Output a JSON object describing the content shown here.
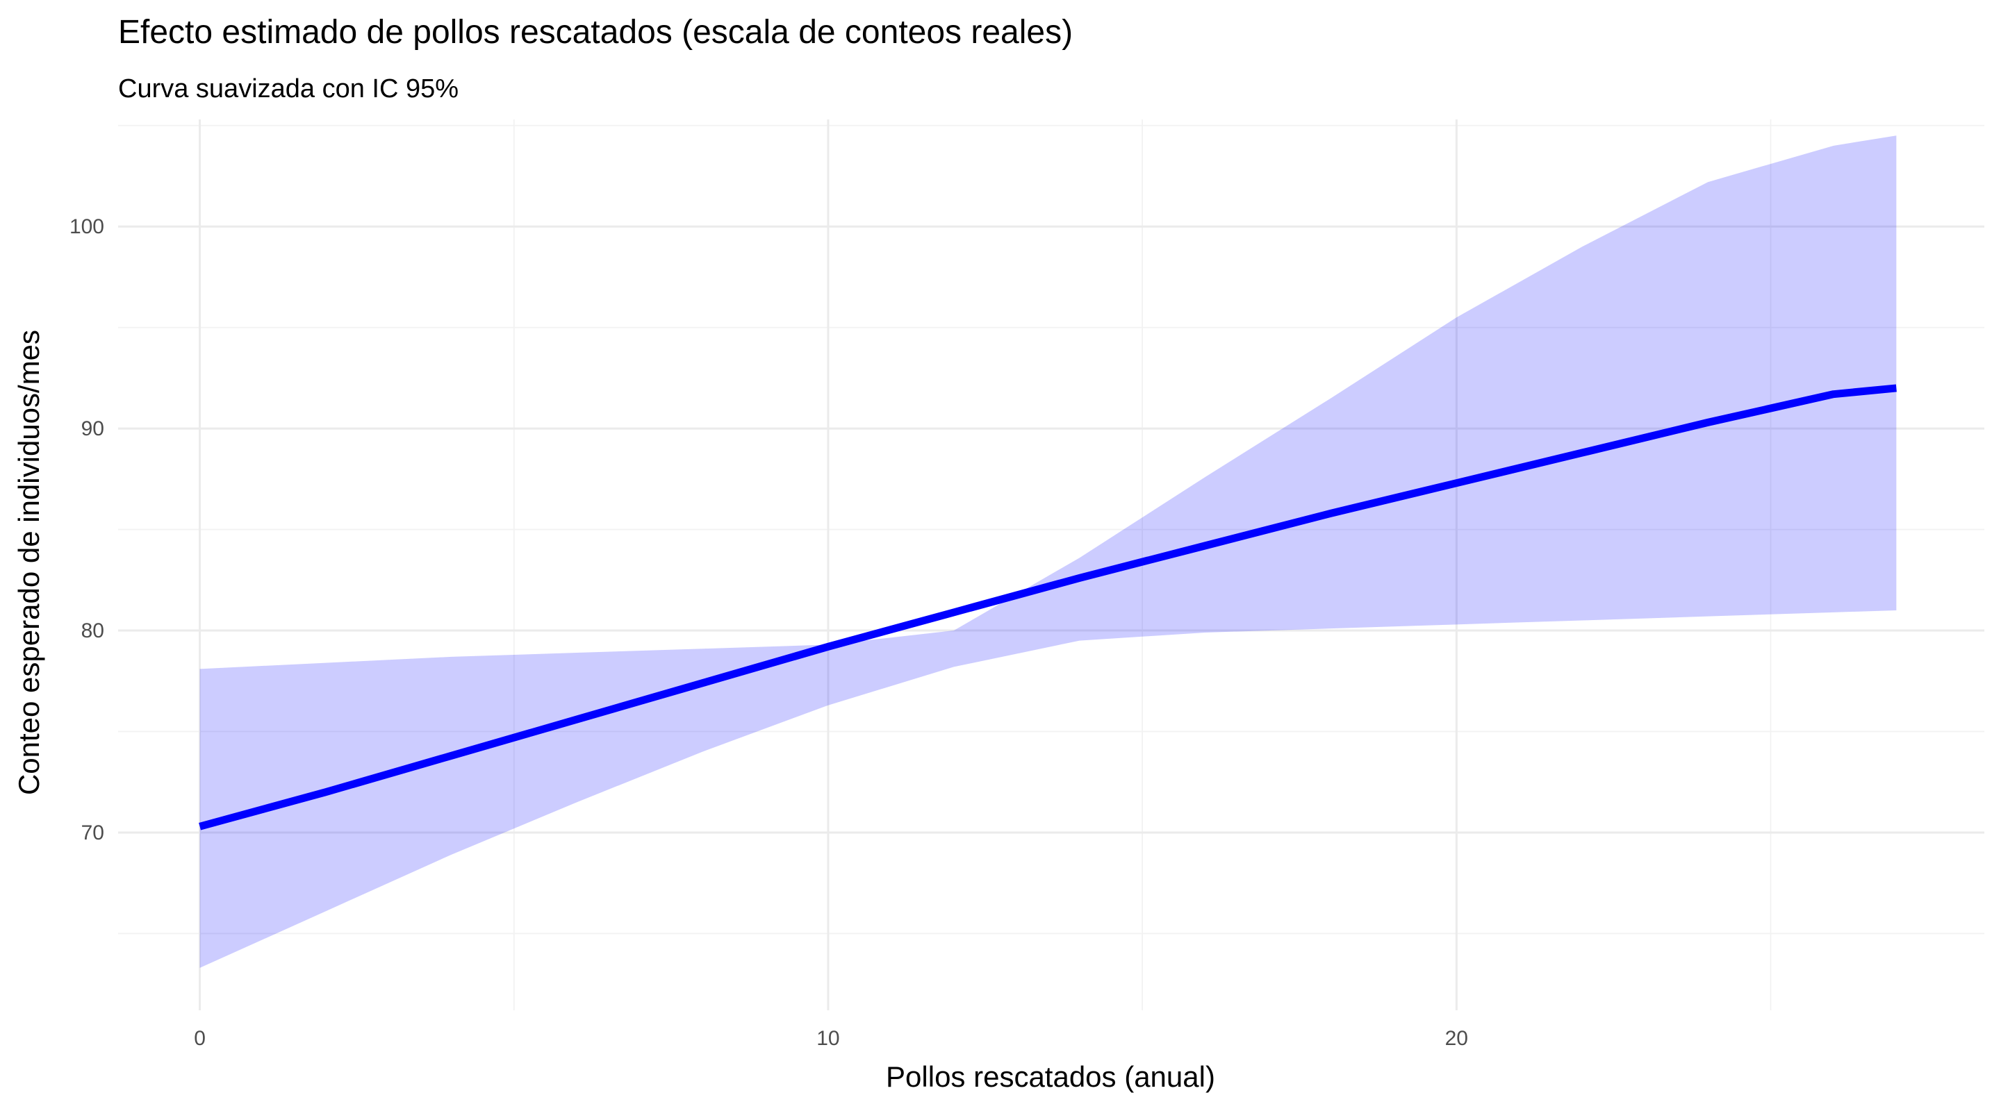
{
  "chart_data": {
    "type": "line",
    "title": "Efecto estimado de pollos rescatados (escala de conteos reales)",
    "subtitle": "Curva suavizada con IC 95%",
    "xlabel": "Pollos rescatados (anual)",
    "ylabel": "Conteo esperado de individuos/mes",
    "xlim": [
      -1.3,
      28.4
    ],
    "ylim": [
      61.2,
      105.3
    ],
    "x_ticks": [
      0,
      10,
      20
    ],
    "x_tick_labels": [
      "0",
      "10",
      "20"
    ],
    "y_ticks": [
      70,
      80,
      90,
      100
    ],
    "y_tick_labels": [
      "70",
      "80",
      "90",
      "100"
    ],
    "x_minor_ticks": [
      5,
      15,
      25
    ],
    "y_minor_ticks": [
      65,
      75,
      85,
      95,
      105
    ],
    "grid": true,
    "legend": "none",
    "colors": {
      "line": "#0000ff",
      "ribbon": "#0000ff",
      "ribbon_opacity": 0.2
    },
    "series": [
      {
        "x": [
          0,
          2,
          4,
          6,
          8,
          10,
          12,
          14,
          16,
          18,
          20,
          22,
          24,
          26,
          27
        ],
        "y": [
          70.3,
          72.0,
          73.8,
          75.6,
          77.4,
          79.2,
          80.9,
          82.6,
          84.2,
          85.8,
          87.3,
          88.8,
          90.3,
          91.7,
          92.0
        ],
        "lower": [
          63.3,
          66.1,
          68.9,
          71.5,
          74.0,
          76.3,
          78.2,
          79.5,
          79.9,
          80.1,
          80.3,
          80.5,
          80.7,
          80.9,
          81.0
        ],
        "upper": [
          78.1,
          78.4,
          78.7,
          78.9,
          79.1,
          79.3,
          80.0,
          83.6,
          87.6,
          91.5,
          95.5,
          99.0,
          102.2,
          104.0,
          104.5
        ]
      }
    ]
  }
}
